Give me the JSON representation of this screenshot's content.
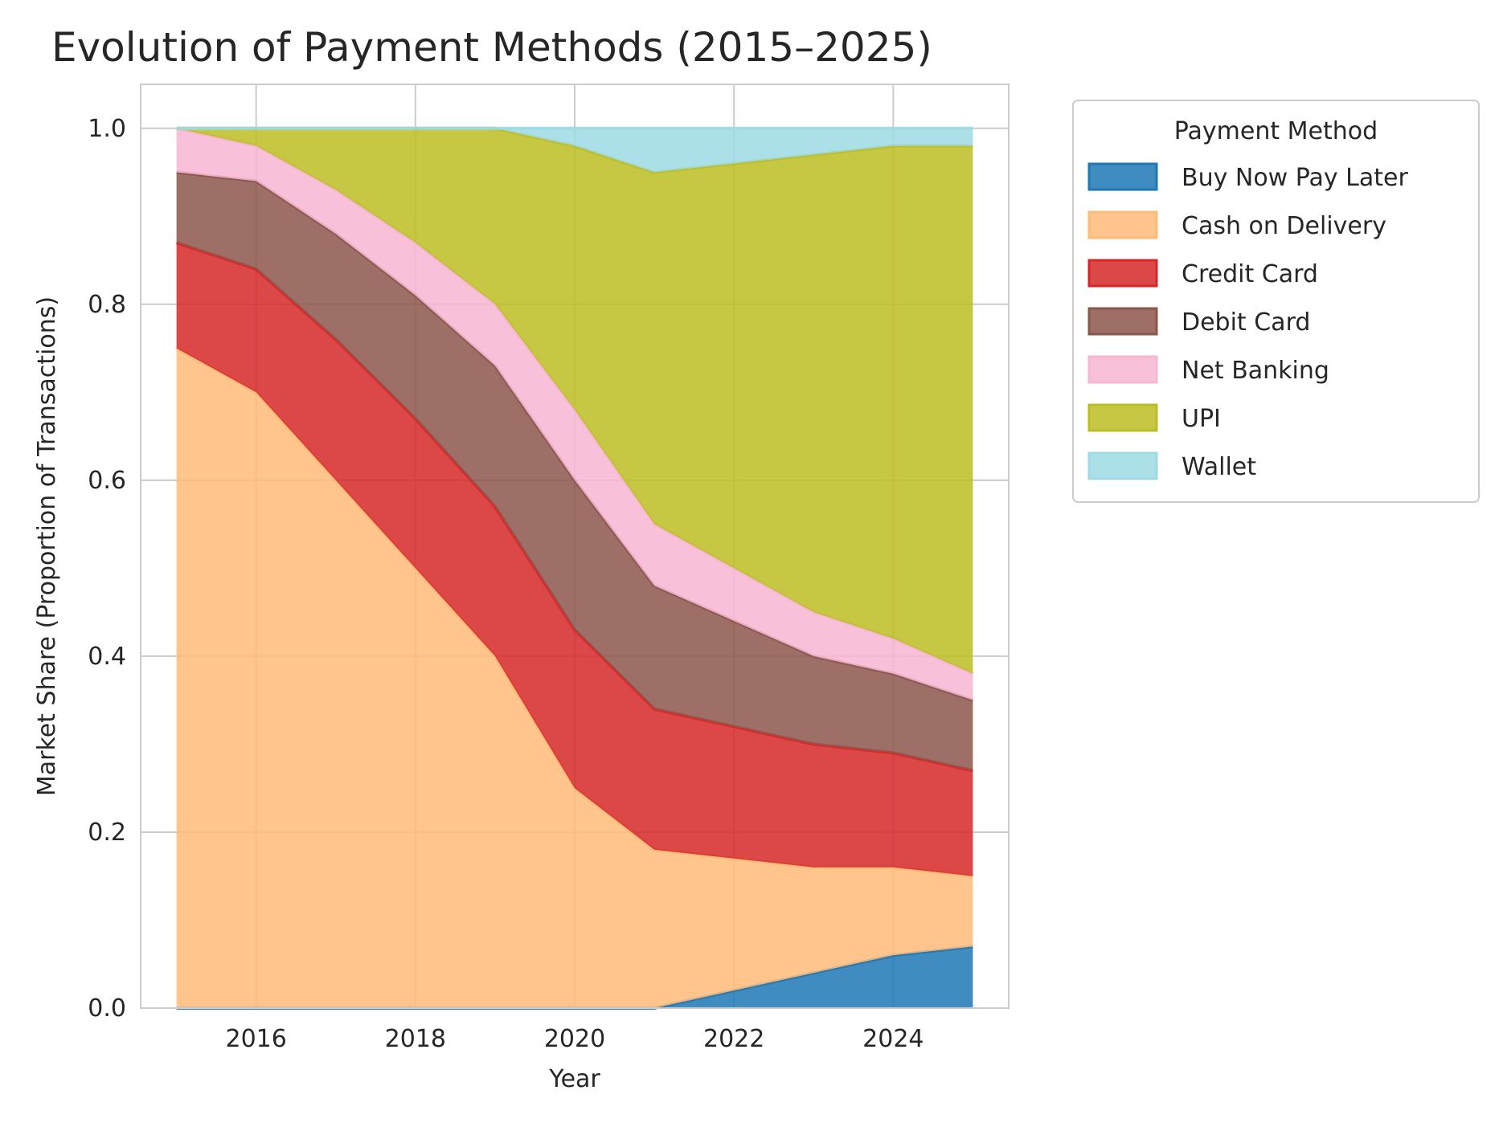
{
  "chart_data": {
    "type": "area",
    "stacked": true,
    "title": "Evolution of Payment Methods (2015–2025)",
    "xlabel": "Year",
    "ylabel": "Market Share (Proportion of Transactions)",
    "x": [
      2015,
      2016,
      2017,
      2018,
      2019,
      2020,
      2021,
      2022,
      2023,
      2024,
      2025
    ],
    "xlim": [
      2014.55,
      2025.45
    ],
    "ylim": [
      0,
      1.05
    ],
    "x_ticks": [
      "2016",
      "2018",
      "2020",
      "2022",
      "2024"
    ],
    "y_ticks": [
      "0.0",
      "0.2",
      "0.4",
      "0.6",
      "0.8",
      "1.0"
    ],
    "grid": true,
    "legend": {
      "title": "Payment Method",
      "position": "outside-right-top"
    },
    "series": [
      {
        "name": "Buy Now Pay Later",
        "color": "#1f77b4",
        "values": [
          0,
          0,
          0,
          0,
          0,
          0,
          0,
          0.02,
          0.04,
          0.06,
          0.07
        ]
      },
      {
        "name": "Cash on Delivery",
        "color": "#ffbb78",
        "values": [
          0.75,
          0.7,
          0.6,
          0.5,
          0.4,
          0.25,
          0.18,
          0.15,
          0.12,
          0.1,
          0.08
        ]
      },
      {
        "name": "Credit Card",
        "color": "#d62728",
        "values": [
          0.12,
          0.14,
          0.16,
          0.17,
          0.17,
          0.18,
          0.16,
          0.15,
          0.14,
          0.13,
          0.12
        ]
      },
      {
        "name": "Debit Card",
        "color": "#8c564b",
        "values": [
          0.08,
          0.1,
          0.12,
          0.14,
          0.16,
          0.17,
          0.14,
          0.12,
          0.1,
          0.09,
          0.08
        ]
      },
      {
        "name": "Net Banking",
        "color": "#f7b6d2",
        "values": [
          0.05,
          0.04,
          0.05,
          0.06,
          0.07,
          0.08,
          0.07,
          0.06,
          0.05,
          0.04,
          0.03
        ]
      },
      {
        "name": "UPI",
        "color": "#bcbd22",
        "values": [
          0,
          0.02,
          0.07,
          0.13,
          0.2,
          0.3,
          0.4,
          0.46,
          0.52,
          0.56,
          0.6
        ]
      },
      {
        "name": "Wallet",
        "color": "#9edae5",
        "values": [
          0,
          0,
          0,
          0,
          0,
          0.02,
          0.05,
          0.04,
          0.03,
          0.02,
          0.02
        ]
      }
    ]
  }
}
